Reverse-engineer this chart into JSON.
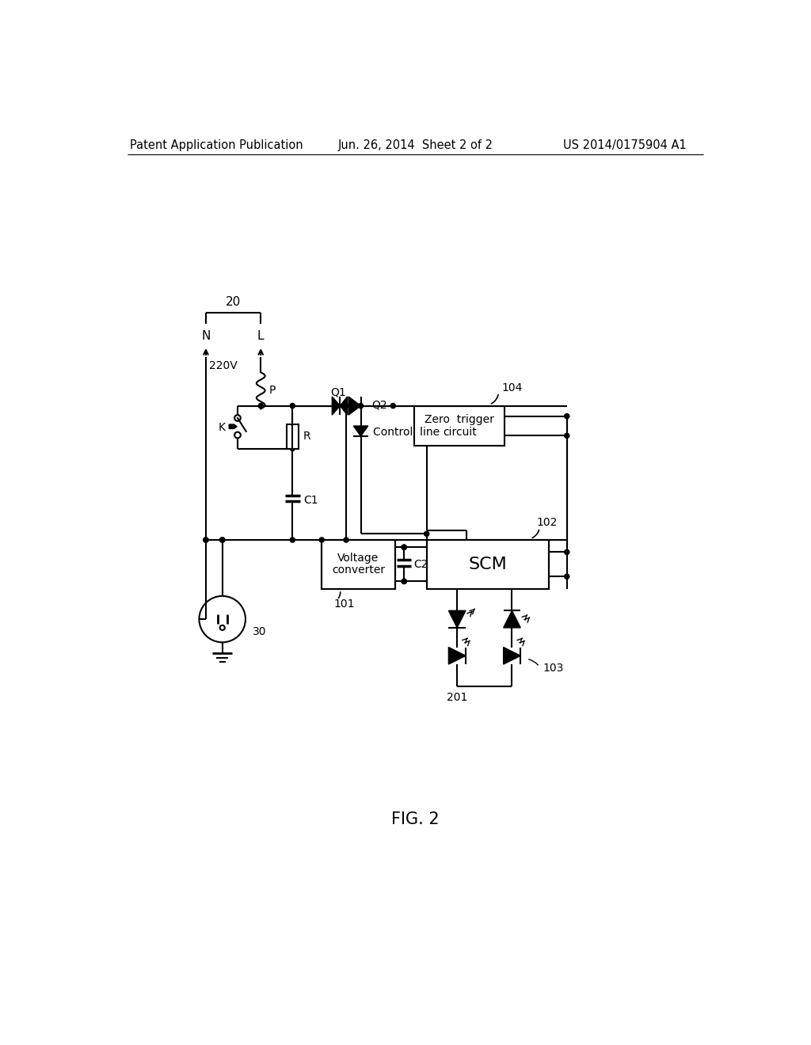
{
  "title": "FIG. 2",
  "header_left": "Patent Application Publication",
  "header_center": "Jun. 26, 2014  Sheet 2 of 2",
  "header_right": "US 2014/0175904 A1",
  "bg_color": "#ffffff",
  "font_size_header": 10.5,
  "font_size_label": 10,
  "font_size_title": 15
}
